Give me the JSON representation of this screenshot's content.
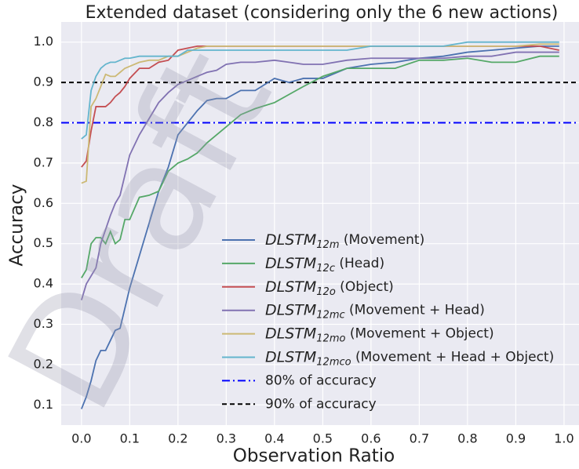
{
  "chart_data": {
    "type": "line",
    "title": "Extended dataset (considering only the 6 new actions)",
    "xlabel": "Observation Ratio",
    "ylabel": "Accuracy",
    "watermark": "Draft",
    "x": [
      0,
      0.01,
      0.02,
      0.03,
      0.04,
      0.05,
      0.06,
      0.07,
      0.08,
      0.09,
      0.1,
      0.12,
      0.14,
      0.16,
      0.18,
      0.2,
      0.22,
      0.24,
      0.26,
      0.28,
      0.3,
      0.33,
      0.36,
      0.4,
      0.43,
      0.46,
      0.5,
      0.55,
      0.6,
      0.65,
      0.7,
      0.75,
      0.8,
      0.85,
      0.9,
      0.95,
      0.99
    ],
    "series": [
      {
        "name": "DLSTM12m (Movement)",
        "color": "#4c72b0",
        "values": [
          0.09,
          0.12,
          0.16,
          0.21,
          0.235,
          0.235,
          0.26,
          0.285,
          0.29,
          0.34,
          0.39,
          0.47,
          0.55,
          0.63,
          0.69,
          0.77,
          0.8,
          0.83,
          0.855,
          0.86,
          0.86,
          0.88,
          0.88,
          0.91,
          0.9,
          0.91,
          0.91,
          0.935,
          0.945,
          0.95,
          0.96,
          0.965,
          0.975,
          0.98,
          0.985,
          0.99,
          0.99
        ]
      },
      {
        "name": "DLSTM12c (Head)",
        "color": "#55a868",
        "values": [
          0.415,
          0.435,
          0.5,
          0.515,
          0.515,
          0.5,
          0.53,
          0.5,
          0.51,
          0.56,
          0.56,
          0.615,
          0.62,
          0.63,
          0.68,
          0.7,
          0.71,
          0.725,
          0.75,
          0.77,
          0.79,
          0.82,
          0.835,
          0.85,
          0.87,
          0.89,
          0.915,
          0.935,
          0.935,
          0.935,
          0.955,
          0.955,
          0.96,
          0.95,
          0.95,
          0.965,
          0.965
        ]
      },
      {
        "name": "DLSTM12o (Object)",
        "color": "#c44e52",
        "values": [
          0.69,
          0.705,
          0.78,
          0.84,
          0.84,
          0.84,
          0.85,
          0.865,
          0.875,
          0.89,
          0.91,
          0.935,
          0.935,
          0.95,
          0.955,
          0.98,
          0.985,
          0.99,
          0.99,
          0.99,
          0.99,
          0.99,
          0.99,
          0.99,
          0.99,
          0.99,
          0.99,
          0.99,
          0.99,
          0.99,
          0.99,
          0.99,
          0.99,
          0.99,
          0.99,
          0.99,
          0.98
        ]
      },
      {
        "name": "DLSTM12mc (Movement + Head)",
        "color": "#8172b2",
        "values": [
          0.36,
          0.4,
          0.42,
          0.44,
          0.5,
          0.535,
          0.57,
          0.6,
          0.62,
          0.67,
          0.72,
          0.77,
          0.81,
          0.85,
          0.875,
          0.895,
          0.905,
          0.915,
          0.925,
          0.93,
          0.945,
          0.95,
          0.95,
          0.955,
          0.95,
          0.945,
          0.945,
          0.955,
          0.96,
          0.96,
          0.96,
          0.96,
          0.965,
          0.965,
          0.975,
          0.975,
          0.975
        ]
      },
      {
        "name": "DLSTM12mo (Movement + Object)",
        "color": "#ccb974",
        "values": [
          0.65,
          0.655,
          0.84,
          0.86,
          0.89,
          0.92,
          0.915,
          0.915,
          0.925,
          0.935,
          0.94,
          0.95,
          0.955,
          0.955,
          0.965,
          0.965,
          0.975,
          0.985,
          0.99,
          0.99,
          0.99,
          0.99,
          0.99,
          0.99,
          0.99,
          0.99,
          0.99,
          0.99,
          0.99,
          0.99,
          0.99,
          0.99,
          0.99,
          0.99,
          0.99,
          0.995,
          0.995
        ]
      },
      {
        "name": "DLSTM12mco (Movement + Head + Object)",
        "color": "#64b5cd",
        "values": [
          0.76,
          0.77,
          0.88,
          0.915,
          0.935,
          0.945,
          0.95,
          0.95,
          0.955,
          0.96,
          0.96,
          0.965,
          0.965,
          0.965,
          0.965,
          0.965,
          0.98,
          0.98,
          0.98,
          0.98,
          0.98,
          0.98,
          0.98,
          0.98,
          0.98,
          0.98,
          0.98,
          0.98,
          0.99,
          0.99,
          0.99,
          0.99,
          1.0,
          1.0,
          1.0,
          1.0,
          1.0
        ]
      }
    ],
    "hlines": [
      {
        "name": "80% of accuracy",
        "value": 0.8,
        "color": "#0000ff",
        "style": "dashdot"
      },
      {
        "name": "90% of accuracy",
        "value": 0.9,
        "color": "#000000",
        "style": "dashed"
      }
    ],
    "xlim": [
      -0.042,
      1.031
    ],
    "ylim": [
      0.05,
      1.05
    ],
    "xticks": [
      {
        "value": 0,
        "label": "0.0"
      },
      0.1,
      0.2,
      0.3,
      0.4,
      0.5,
      0.6,
      0.7,
      0.8,
      0.9,
      {
        "value": 1,
        "label": "1.0"
      }
    ],
    "yticks": [
      0.1,
      0.2,
      0.3,
      0.4,
      0.5,
      0.6,
      0.7,
      0.8,
      0.9,
      {
        "value": 1,
        "label": "1.0"
      }
    ],
    "grid": true,
    "legend": "lower right"
  }
}
